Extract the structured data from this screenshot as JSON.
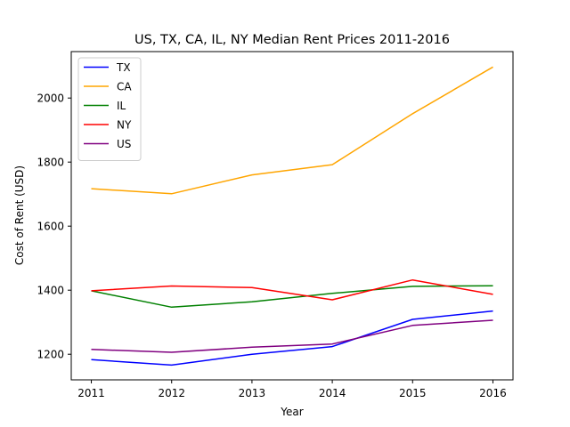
{
  "chart_data": {
    "type": "line",
    "title": "US, TX, CA, IL, NY Median Rent Prices 2011-2016",
    "xlabel": "Year",
    "ylabel": "Cost of Rent (USD)",
    "x": [
      2011,
      2012,
      2013,
      2014,
      2015,
      2016
    ],
    "x_tick_labels": [
      "2011",
      "2012",
      "2013",
      "2014",
      "2015",
      "2016"
    ],
    "y_ticks": [
      1200,
      1400,
      1600,
      1800,
      2000
    ],
    "y_tick_labels": [
      "1200",
      "1400",
      "1600",
      "1800",
      "2000"
    ],
    "xlim": [
      2010.75,
      2016.25
    ],
    "ylim": [
      1120,
      2145
    ],
    "grid": false,
    "legend_position": "top-left",
    "series": [
      {
        "name": "TX",
        "color": "#0000ff",
        "values": [
          1183,
          1166,
          1200,
          1224,
          1309,
          1335
        ]
      },
      {
        "name": "CA",
        "color": "#ffa500",
        "values": [
          1717,
          1701,
          1760,
          1792,
          1951,
          2097
        ]
      },
      {
        "name": "IL",
        "color": "#008000",
        "values": [
          1398,
          1347,
          1364,
          1390,
          1412,
          1414
        ]
      },
      {
        "name": "NY",
        "color": "#ff0000",
        "values": [
          1398,
          1413,
          1408,
          1370,
          1432,
          1387
        ]
      },
      {
        "name": "US",
        "color": "#800080",
        "values": [
          1215,
          1206,
          1222,
          1232,
          1290,
          1306
        ]
      }
    ]
  }
}
